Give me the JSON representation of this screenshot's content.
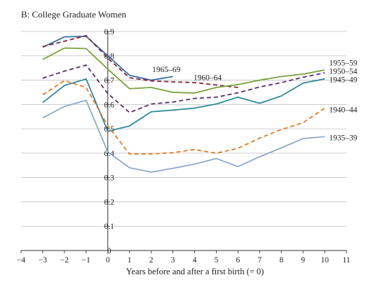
{
  "chart_data": {
    "type": "line",
    "title": "B: College Graduate Women",
    "xlabel": "Years before and after a first birth (= 0)",
    "ylabel": "",
    "xlim": [
      -4,
      11
    ],
    "ylim": [
      0,
      0.9
    ],
    "x_ticks": [
      -4,
      -3,
      -2,
      -1,
      0,
      1,
      2,
      3,
      4,
      5,
      6,
      7,
      8,
      9,
      10,
      11
    ],
    "y_ticks": [
      0,
      0.1,
      0.2,
      0.3,
      0.4,
      0.5,
      0.6,
      0.7,
      0.8,
      0.9
    ],
    "grid": true,
    "series": [
      {
        "name": "1965–69",
        "color": "#3a6ea5",
        "dash": false,
        "label_placement": "inline",
        "x": [
          -3,
          -2,
          -1,
          0,
          1,
          2,
          3
        ],
        "y": [
          0.835,
          0.878,
          0.88,
          0.8,
          0.72,
          0.7,
          0.715
        ]
      },
      {
        "name": "1960–64",
        "color": "#8b2335",
        "dash": true,
        "label_placement": "inline",
        "x": [
          -3,
          -2,
          -1,
          0,
          1,
          2,
          3,
          4,
          5,
          6
        ],
        "y": [
          0.838,
          0.86,
          0.883,
          0.79,
          0.71,
          0.697,
          0.693,
          0.69,
          0.68,
          0.67
        ]
      },
      {
        "name": "1955–59",
        "color": "#7aa13a",
        "dash": false,
        "label_placement": "right",
        "x": [
          -3,
          -2,
          -1,
          0,
          1,
          2,
          3,
          4,
          5,
          6,
          7,
          8,
          9,
          10
        ],
        "y": [
          0.785,
          0.832,
          0.83,
          0.745,
          0.665,
          0.67,
          0.65,
          0.647,
          0.67,
          0.682,
          0.7,
          0.715,
          0.725,
          0.742
        ]
      },
      {
        "name": "1950–54",
        "color": "#5a2d6e",
        "dash": true,
        "label_placement": "right",
        "x": [
          -3,
          -2,
          -1,
          0,
          1,
          2,
          3,
          4,
          5,
          6,
          7,
          8,
          9,
          10
        ],
        "y": [
          0.708,
          0.737,
          0.762,
          0.645,
          0.567,
          0.602,
          0.61,
          0.625,
          0.63,
          0.648,
          0.672,
          0.69,
          0.712,
          0.73
        ]
      },
      {
        "name": "1945–49",
        "color": "#2e8a9a",
        "dash": false,
        "label_placement": "right",
        "x": [
          -3,
          -2,
          -1,
          0,
          1,
          2,
          3,
          4,
          5,
          6,
          7,
          8,
          9,
          10
        ],
        "y": [
          0.608,
          0.678,
          0.705,
          0.49,
          0.512,
          0.57,
          0.577,
          0.585,
          0.602,
          0.63,
          0.605,
          0.635,
          0.688,
          0.705
        ]
      },
      {
        "name": "1940–44",
        "color": "#e07b28",
        "dash": true,
        "label_placement": "right",
        "x": [
          -3,
          -2,
          -1,
          0,
          1,
          2,
          3,
          4,
          5,
          6,
          7,
          8,
          9,
          10
        ],
        "y": [
          0.64,
          0.698,
          0.67,
          0.512,
          0.397,
          0.397,
          0.402,
          0.415,
          0.4,
          0.42,
          0.462,
          0.497,
          0.525,
          0.585
        ]
      },
      {
        "name": "1935–39",
        "color": "#8fa9c9",
        "dash": false,
        "label_placement": "right",
        "x": [
          -3,
          -2,
          -1,
          0,
          1,
          2,
          3,
          4,
          5,
          6,
          7,
          8,
          9,
          10
        ],
        "y": [
          0.545,
          0.592,
          0.617,
          0.405,
          0.34,
          0.322,
          0.338,
          0.355,
          0.378,
          0.345,
          0.385,
          0.422,
          0.46,
          0.468
        ]
      }
    ]
  }
}
